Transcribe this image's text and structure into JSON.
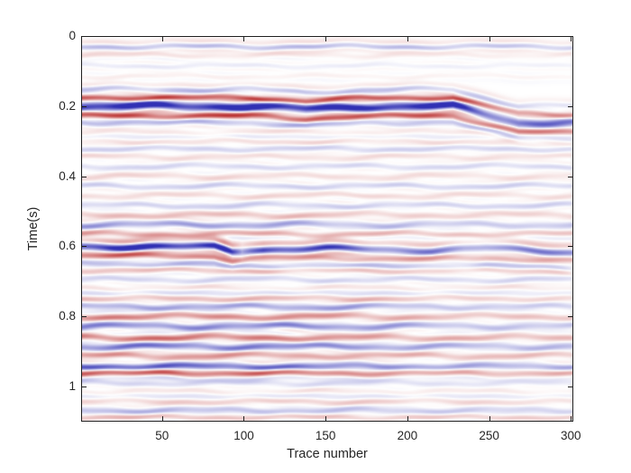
{
  "chart_data": {
    "type": "heatmap",
    "title": "",
    "xlabel": "Trace number",
    "ylabel": "Time(s)",
    "xlim": [
      0.5,
      301.5
    ],
    "ylim": [
      0,
      1.1
    ],
    "x_ticks": [
      50,
      100,
      150,
      200,
      250,
      300
    ],
    "x_tick_labels": [
      "50",
      "100",
      "150",
      "200",
      "250",
      "300"
    ],
    "y_ticks": [
      0,
      0.2,
      0.4,
      0.6,
      0.8,
      1
    ],
    "y_tick_labels": [
      "0",
      "0.2",
      "0.4",
      "0.6",
      "0.8",
      "1"
    ],
    "grid": false,
    "legend": null,
    "description": "Seismic section, 301 traces, 0-1.1 s. Diverging blue-white-red amplitude colormap. Strong reflector packages near 0.2 s (sag near trace 140, downward step of ~0.045 s after trace 230) and 0.6 s (local sag/diffraction near trace 93, weaker to the right); moderate stripe package 0.75-1.0 s; faint laminated texture elsewhere.",
    "colormap": {
      "negative": "#3030b4",
      "zero": "#ffffff",
      "positive": "#bc3434"
    },
    "texture": {
      "w1": 0.0032,
      "l1": 92,
      "p1": 2.399,
      "w2": 0.0016,
      "l2": 37,
      "p2": 1.271,
      "amp_mod": 0.22,
      "amp_len": 61
    },
    "shift_profiles": {
      "S1": [
        [
          0,
          0
        ],
        [
          105,
          0
        ],
        [
          138,
          0.009
        ],
        [
          172,
          0.001
        ],
        [
          228,
          0
        ],
        [
          268,
          0.046
        ],
        [
          300,
          0.048
        ]
      ],
      "S2": [
        [
          0,
          0
        ],
        [
          82,
          0.001
        ],
        [
          93,
          0.014
        ],
        [
          104,
          0.009
        ],
        [
          150,
          0.006
        ],
        [
          215,
          0.011
        ],
        [
          248,
          0.005
        ],
        [
          300,
          0.016
        ]
      ]
    },
    "events": [
      {
        "t": 0.03,
        "a": -0.3,
        "h": 0.012,
        "amps": [
          [
            0,
            0.9
          ],
          [
            150,
            1.0
          ],
          [
            300,
            0.75
          ]
        ]
      },
      {
        "t": 0.055,
        "a": 0.16,
        "h": 0.011,
        "amps": [
          [
            0,
            0.8
          ],
          [
            150,
            0.45
          ],
          [
            300,
            0.35
          ]
        ]
      },
      {
        "t": 0.085,
        "a": -0.15,
        "h": 0.011,
        "amps": [
          [
            0,
            0.7
          ],
          [
            300,
            0.35
          ]
        ]
      },
      {
        "t": 0.115,
        "a": 0.14,
        "h": 0.011,
        "amps": [
          [
            0,
            0.55
          ],
          [
            300,
            0.3
          ]
        ]
      },
      {
        "t": 0.152,
        "a": -0.3,
        "h": 0.012,
        "shift_ref": "S1",
        "amps": [
          [
            0,
            0.8
          ],
          [
            230,
            0.8
          ],
          [
            265,
            0.5
          ],
          [
            300,
            0.5
          ]
        ]
      },
      {
        "t": 0.176,
        "a": 0.42,
        "h": 0.011,
        "shift_ref": "S1",
        "amps": [
          [
            0,
            0.95
          ],
          [
            230,
            0.9
          ],
          [
            265,
            0.6
          ],
          [
            300,
            0.6
          ]
        ]
      },
      {
        "t": 0.2,
        "a": -1.0,
        "h": 0.018,
        "shift_ref": "S1",
        "amps": [
          [
            0,
            1
          ],
          [
            150,
            1
          ],
          [
            230,
            1
          ],
          [
            260,
            0.55
          ],
          [
            300,
            0.6
          ]
        ]
      },
      {
        "t": 0.228,
        "a": 0.45,
        "h": 0.012,
        "shift_ref": "S1",
        "amps": [
          [
            0,
            1
          ],
          [
            230,
            0.85
          ],
          [
            300,
            0.55
          ]
        ]
      },
      {
        "t": 0.247,
        "a": -0.28,
        "h": 0.012,
        "shift_ref": "S1",
        "amps": [
          [
            0,
            0.8
          ],
          [
            300,
            0.5
          ]
        ]
      },
      {
        "t": 0.275,
        "a": 0.18,
        "h": 0.012,
        "amps": [
          [
            0,
            0.6
          ],
          [
            300,
            0.4
          ]
        ]
      },
      {
        "t": 0.3,
        "a": 0.2,
        "h": 0.012,
        "amps": [
          [
            0,
            0.5
          ],
          [
            120,
            0.7
          ],
          [
            300,
            0.45
          ]
        ]
      },
      {
        "t": 0.322,
        "a": -0.16,
        "h": 0.012
      },
      {
        "t": 0.345,
        "a": 0.18,
        "h": 0.012,
        "amps": [
          [
            0,
            0.7
          ],
          [
            300,
            0.5
          ]
        ]
      },
      {
        "t": 0.372,
        "a": -0.15,
        "h": 0.012
      },
      {
        "t": 0.4,
        "a": 0.22,
        "h": 0.013,
        "amps": [
          [
            0,
            0.8
          ],
          [
            160,
            0.6
          ],
          [
            300,
            0.5
          ]
        ]
      },
      {
        "t": 0.428,
        "a": -0.18,
        "h": 0.012
      },
      {
        "t": 0.455,
        "a": 0.22,
        "h": 0.012,
        "amps": [
          [
            0,
            0.6
          ],
          [
            150,
            0.75
          ],
          [
            300,
            0.5
          ]
        ]
      },
      {
        "t": 0.483,
        "a": -0.17,
        "h": 0.012
      },
      {
        "t": 0.51,
        "a": 0.28,
        "h": 0.013,
        "amps": [
          [
            0,
            0.75
          ],
          [
            100,
            0.9
          ],
          [
            200,
            0.55
          ],
          [
            300,
            0.6
          ]
        ]
      },
      {
        "t": 0.538,
        "a": -0.4,
        "h": 0.014,
        "amps": [
          [
            0,
            0.9
          ],
          [
            90,
            1
          ],
          [
            160,
            0.65
          ],
          [
            250,
            0.5
          ],
          [
            300,
            0.55
          ]
        ]
      },
      {
        "t": 0.565,
        "a": 0.35,
        "h": 0.012,
        "amps": [
          [
            0,
            0.9
          ],
          [
            150,
            0.8
          ],
          [
            300,
            0.55
          ]
        ]
      },
      {
        "t": 0.6,
        "a": -0.95,
        "h": 0.016,
        "shift_ref": "S2",
        "amps": [
          [
            0,
            1
          ],
          [
            60,
            1.05
          ],
          [
            88,
            1.2
          ],
          [
            99,
            0.35
          ],
          [
            112,
            0.95
          ],
          [
            150,
            0.9
          ],
          [
            178,
            0.6
          ],
          [
            215,
            0.55
          ],
          [
            235,
            0.42
          ],
          [
            255,
            0.55
          ],
          [
            300,
            0.6
          ]
        ]
      },
      {
        "t": 0.627,
        "a": 0.35,
        "h": 0.012,
        "shift_ref": "S2",
        "amps": [
          [
            0,
            0.9
          ],
          [
            95,
            1
          ],
          [
            110,
            0.5
          ],
          [
            200,
            0.7
          ],
          [
            300,
            0.5
          ]
        ]
      },
      {
        "t": 0.65,
        "a": -0.25,
        "h": 0.012,
        "shift_ref": "S2",
        "amps": [
          [
            0,
            0.7
          ],
          [
            260,
            0.6
          ],
          [
            300,
            0.7
          ]
        ]
      },
      {
        "t": 0.668,
        "a": 0.3,
        "h": 0.012,
        "amps": [
          [
            0,
            0.8
          ],
          [
            150,
            0.7
          ],
          [
            300,
            0.5
          ]
        ]
      },
      {
        "t": 0.695,
        "a": -0.16,
        "h": 0.012
      },
      {
        "t": 0.72,
        "a": 0.2,
        "h": 0.012,
        "amps": [
          [
            0,
            0.6
          ],
          [
            300,
            0.45
          ]
        ]
      },
      {
        "t": 0.748,
        "a": 0.28,
        "h": 0.013,
        "amps": [
          [
            0,
            0.85
          ],
          [
            150,
            0.95
          ],
          [
            300,
            0.45
          ]
        ]
      },
      {
        "t": 0.772,
        "a": -0.35,
        "h": 0.013,
        "amps": [
          [
            0,
            0.8
          ],
          [
            150,
            0.9
          ],
          [
            230,
            0.5
          ],
          [
            300,
            0.45
          ]
        ]
      },
      {
        "t": 0.8,
        "a": 0.45,
        "h": 0.014,
        "amps": [
          [
            0,
            1
          ],
          [
            130,
            0.95
          ],
          [
            220,
            0.5
          ],
          [
            300,
            0.55
          ]
        ]
      },
      {
        "t": 0.828,
        "a": -0.45,
        "h": 0.014,
        "amps": [
          [
            0,
            0.85
          ],
          [
            150,
            1
          ],
          [
            230,
            0.5
          ],
          [
            300,
            0.45
          ]
        ]
      },
      {
        "t": 0.86,
        "a": 0.5,
        "h": 0.014,
        "amps": [
          [
            0,
            1
          ],
          [
            100,
            1
          ],
          [
            200,
            0.6
          ],
          [
            300,
            0.5
          ]
        ]
      },
      {
        "t": 0.886,
        "a": -0.48,
        "h": 0.014,
        "amps": [
          [
            0,
            0.9
          ],
          [
            140,
            0.9
          ],
          [
            240,
            0.45
          ],
          [
            300,
            0.5
          ]
        ]
      },
      {
        "t": 0.912,
        "a": 0.4,
        "h": 0.013,
        "amps": [
          [
            0,
            0.85
          ],
          [
            150,
            0.7
          ],
          [
            300,
            0.5
          ]
        ]
      },
      {
        "t": 0.942,
        "a": -0.52,
        "h": 0.014,
        "amps": [
          [
            0,
            1
          ],
          [
            90,
            1
          ],
          [
            180,
            0.7
          ],
          [
            260,
            0.5
          ],
          [
            300,
            0.55
          ]
        ]
      },
      {
        "t": 0.962,
        "a": 0.55,
        "h": 0.013,
        "amps": [
          [
            0,
            1
          ],
          [
            120,
            0.9
          ],
          [
            220,
            0.5
          ],
          [
            300,
            0.45
          ]
        ]
      },
      {
        "t": 0.99,
        "a": -0.22,
        "h": 0.012,
        "amps": [
          [
            0,
            0.7
          ],
          [
            300,
            0.4
          ]
        ]
      },
      {
        "t": 1.015,
        "a": 0.18,
        "h": 0.012,
        "amps": [
          [
            0,
            0.5
          ],
          [
            150,
            0.6
          ],
          [
            300,
            0.4
          ]
        ]
      },
      {
        "t": 1.042,
        "a": 0.24,
        "h": 0.013,
        "amps": [
          [
            0,
            0.7
          ],
          [
            150,
            0.9
          ],
          [
            300,
            0.5
          ]
        ]
      },
      {
        "t": 1.068,
        "a": -0.28,
        "h": 0.013,
        "amps": [
          [
            0,
            0.9
          ],
          [
            120,
            0.7
          ],
          [
            300,
            0.45
          ]
        ]
      },
      {
        "t": 1.088,
        "a": 0.3,
        "h": 0.012,
        "amps": [
          [
            0,
            0.85
          ],
          [
            200,
            0.6
          ],
          [
            300,
            0.7
          ]
        ]
      }
    ]
  }
}
